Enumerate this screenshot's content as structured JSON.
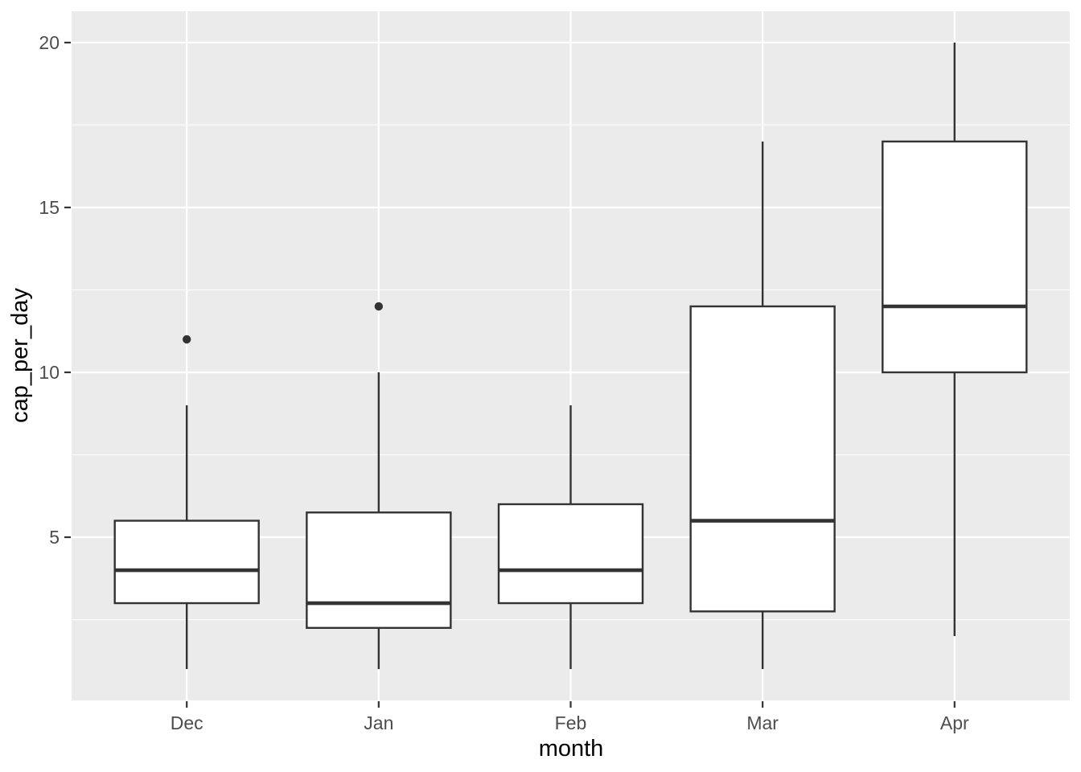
{
  "chart_data": {
    "type": "boxplot",
    "title": "",
    "xlabel": "month",
    "ylabel": "cap_per_day",
    "categories": [
      "Dec",
      "Jan",
      "Feb",
      "Mar",
      "Apr"
    ],
    "series": [
      {
        "category": "Dec",
        "whisker_low": 1,
        "q1": 3,
        "median": 4,
        "q3": 5.5,
        "whisker_high": 9,
        "outliers": [
          11
        ]
      },
      {
        "category": "Jan",
        "whisker_low": 1,
        "q1": 2.25,
        "median": 3,
        "q3": 5.75,
        "whisker_high": 10,
        "outliers": [
          12
        ]
      },
      {
        "category": "Feb",
        "whisker_low": 1,
        "q1": 3,
        "median": 4,
        "q3": 6,
        "whisker_high": 9,
        "outliers": []
      },
      {
        "category": "Mar",
        "whisker_low": 1,
        "q1": 2.75,
        "median": 5.5,
        "q3": 12,
        "whisker_high": 17,
        "outliers": []
      },
      {
        "category": "Apr",
        "whisker_low": 2,
        "q1": 10,
        "median": 12,
        "q3": 17,
        "whisker_high": 20,
        "outliers": []
      }
    ],
    "y_ticks": [
      5,
      10,
      15,
      20
    ],
    "y_minor_gridlines": [
      2.5,
      7.5,
      12.5,
      17.5
    ],
    "ylim": [
      0.05,
      20.95
    ],
    "grid": "horizontal major+minor, vertical major at categories",
    "legend": "none",
    "colors": {
      "panel_background": "#EBEBEB",
      "gridline": "#FFFFFF",
      "box_stroke": "#333333",
      "box_fill": "#FFFFFF",
      "median_stroke": "#333333",
      "outlier_fill": "#333333",
      "axis_text": "#4D4D4D",
      "axis_title": "#000000",
      "tick_mark": "#333333"
    }
  }
}
